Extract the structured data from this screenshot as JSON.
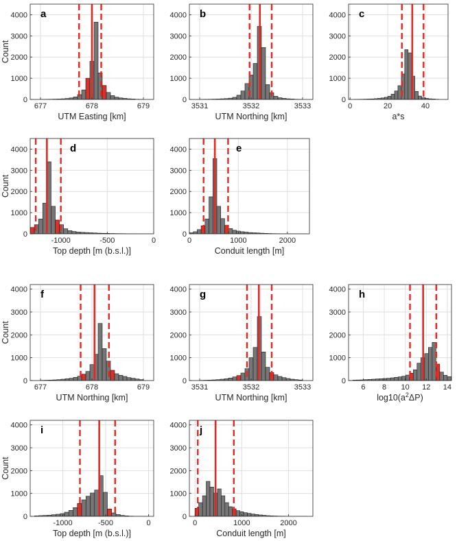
{
  "chart_data": [
    {
      "panel": "a",
      "type": "histogram",
      "xlabel": "UTM Easting [km]",
      "ylabel": "Count",
      "xlim": [
        676.8,
        679.2
      ],
      "ylim": [
        0,
        4500
      ],
      "xticks": [
        677,
        678,
        679
      ],
      "yticks": [
        0,
        1000,
        2000,
        3000,
        4000
      ],
      "bin_start": 677.0,
      "bin_width": 0.08,
      "counts": [
        5,
        8,
        10,
        15,
        20,
        30,
        45,
        70,
        120,
        230,
        450,
        1000,
        1800,
        3650,
        1250,
        660,
        330,
        180,
        110,
        70,
        50,
        30,
        20,
        10,
        5
      ],
      "red_bins": [
        11,
        15
      ],
      "median": 678.0,
      "ci": [
        677.75,
        678.18
      ]
    },
    {
      "panel": "b",
      "type": "histogram",
      "xlabel": "UTM Northing [km]",
      "ylabel": "",
      "xlim": [
        3530.8,
        3533.2
      ],
      "ylim": [
        0,
        4500
      ],
      "xticks": [
        3531,
        3532,
        3533
      ],
      "yticks": [
        0,
        1000,
        2000,
        3000,
        4000
      ],
      "bin_start": 3531.0,
      "bin_width": 0.08,
      "counts": [
        5,
        8,
        10,
        15,
        20,
        30,
        40,
        60,
        100,
        200,
        400,
        750,
        1150,
        1700,
        3450,
        2450,
        700,
        320,
        150,
        80,
        50,
        30,
        20,
        10,
        5
      ],
      "red_bins": [],
      "median": 3532.17,
      "ci": [
        3531.97,
        3532.4
      ]
    },
    {
      "panel": "c",
      "type": "histogram",
      "xlabel": "a*s",
      "ylabel": "",
      "xlim": [
        -0.8,
        52
      ],
      "ylim": [
        0,
        4500
      ],
      "xticks": [
        0,
        20,
        40
      ],
      "yticks": [
        0,
        1000,
        2000,
        3000,
        4000
      ],
      "bin_start": 2,
      "bin_width": 1.8,
      "counts": [
        5,
        8,
        10,
        15,
        20,
        25,
        35,
        50,
        70,
        100,
        150,
        250,
        400,
        650,
        1200,
        2350,
        2200,
        1100,
        380,
        160,
        80,
        50,
        30,
        20,
        10
      ],
      "red_bins": [],
      "median": 33,
      "ci": [
        27.5,
        39
      ]
    },
    {
      "panel": "d",
      "type": "histogram",
      "xlabel": "Top depth [m (b.s.l.)]",
      "ylabel": "Count",
      "xlim": [
        -1330,
        0
      ],
      "ylim": [
        0,
        4500
      ],
      "xticks": [
        -1000,
        -500,
        0
      ],
      "xticklabels": [
        "-1000",
        "-500",
        "0"
      ],
      "yticks": [
        0,
        1000,
        2000,
        3000,
        4000
      ],
      "bin_start": -1330,
      "bin_width": 45,
      "counts": [
        300,
        430,
        700,
        1450,
        3400,
        1300,
        650,
        430,
        240,
        150,
        110,
        85,
        70,
        60,
        50,
        40,
        30,
        25,
        20,
        15,
        12,
        10,
        8,
        5,
        3,
        2,
        1,
        1,
        1
      ],
      "red_bins": [
        0,
        6
      ],
      "median": -1150,
      "ci": [
        -1270,
        -1000
      ]
    },
    {
      "panel": "e",
      "type": "histogram",
      "xlabel": "Conduit length [m]",
      "ylabel": "",
      "xlim": [
        0,
        2450
      ],
      "ylim": [
        0,
        4500
      ],
      "xticks": [
        0,
        1000,
        2000
      ],
      "yticks": [
        0,
        1000,
        2000,
        3000,
        4000
      ],
      "bin_start": 0,
      "bin_width": 80,
      "counts": [
        50,
        100,
        200,
        380,
        700,
        1750,
        3550,
        1300,
        720,
        400,
        250,
        170,
        130,
        100,
        80,
        60,
        50,
        40,
        30,
        20,
        15,
        10,
        8,
        5,
        3,
        2,
        1,
        1,
        1,
        1
      ],
      "red_bins": [
        3,
        9
      ],
      "median": 520,
      "ci": [
        290,
        790
      ]
    },
    {
      "panel": "f",
      "type": "histogram",
      "xlabel": "UTM Northing [km]",
      "ylabel": "Count",
      "xlim": [
        676.8,
        679.2
      ],
      "ylim": [
        0,
        4200
      ],
      "xticks": [
        677,
        678,
        679
      ],
      "yticks": [
        0,
        1000,
        2000,
        3000,
        4000
      ],
      "bin_start": 677.0,
      "bin_width": 0.08,
      "counts": [
        10,
        15,
        20,
        30,
        40,
        60,
        80,
        100,
        140,
        190,
        280,
        400,
        700,
        1150,
        2500,
        1400,
        850,
        450,
        300,
        230,
        180,
        130,
        100,
        70,
        40
      ],
      "red_bins": [
        10,
        17
      ],
      "median": 678.05,
      "ci": [
        677.78,
        678.33
      ]
    },
    {
      "panel": "g",
      "type": "histogram",
      "xlabel": "UTM Northing [km]",
      "ylabel": "",
      "xlim": [
        3530.8,
        3533.2
      ],
      "ylim": [
        0,
        4200
      ],
      "xticks": [
        3531,
        3532,
        3533
      ],
      "yticks": [
        0,
        1000,
        2000,
        3000,
        4000
      ],
      "bin_start": 3531.0,
      "bin_width": 0.08,
      "counts": [
        10,
        15,
        20,
        30,
        40,
        60,
        80,
        110,
        160,
        220,
        330,
        520,
        1000,
        1450,
        2800,
        1250,
        580,
        350,
        250,
        180,
        130,
        90,
        60,
        40,
        25
      ],
      "red_bins": [
        9,
        17
      ],
      "median": 3532.15,
      "ci": [
        3531.92,
        3532.4
      ]
    },
    {
      "panel": "h",
      "type": "histogram",
      "xlabel": "log10(a²ΔP)",
      "ylabel": "",
      "xlim": [
        4.6,
        14.4
      ],
      "ylim": [
        0,
        4200
      ],
      "xticks": [
        6,
        8,
        10,
        12,
        14
      ],
      "yticks": [
        0,
        1000,
        2000,
        3000,
        4000
      ],
      "bin_start": 5.0,
      "bin_width": 0.36,
      "counts": [
        20,
        25,
        30,
        40,
        50,
        60,
        70,
        80,
        90,
        100,
        120,
        140,
        160,
        190,
        240,
        320,
        470,
        760,
        1000,
        1180,
        1450,
        1670,
        720,
        370,
        230,
        170
      ],
      "red_bins": [
        15,
        22
      ],
      "median": 11.7,
      "ci": [
        10.45,
        12.95
      ]
    },
    {
      "panel": "i",
      "type": "histogram",
      "xlabel": "Top depth [m (b.s.l.)]",
      "ylabel": "Count",
      "xlim": [
        -1380,
        60
      ],
      "ylim": [
        0,
        4200
      ],
      "xticks": [
        -1000,
        -500,
        0
      ],
      "xticklabels": [
        "-1000",
        "-500",
        "0"
      ],
      "yticks": [
        0,
        1000,
        2000,
        3000,
        4000
      ],
      "bin_start": -1330,
      "bin_width": 50,
      "counts": [
        20,
        30,
        40,
        50,
        70,
        90,
        120,
        180,
        260,
        380,
        560,
        720,
        880,
        1020,
        1150,
        1780,
        1050,
        320,
        150,
        80,
        40,
        20,
        10,
        5,
        3,
        2,
        1
      ],
      "red_bins": [
        10,
        17
      ],
      "median": -575,
      "ci": [
        -800,
        -390
      ]
    },
    {
      "panel": "j",
      "type": "histogram",
      "xlabel": "Conduit length [m]",
      "ylabel": "",
      "xlim": [
        -120,
        2520
      ],
      "ylim": [
        0,
        4200
      ],
      "xticks": [
        0,
        1000,
        2000
      ],
      "yticks": [
        0,
        1000,
        2000,
        3000,
        4000
      ],
      "bin_start": 0,
      "bin_width": 80,
      "counts": [
        350,
        600,
        900,
        1530,
        1280,
        1020,
        1200,
        900,
        600,
        420,
        330,
        250,
        200,
        160,
        130,
        100,
        80,
        60,
        45,
        30,
        20,
        15,
        10,
        8,
        5,
        3,
        2,
        1,
        1,
        1
      ],
      "red_bins": [
        0,
        10
      ],
      "median": 440,
      "ci": [
        60,
        830
      ]
    }
  ]
}
